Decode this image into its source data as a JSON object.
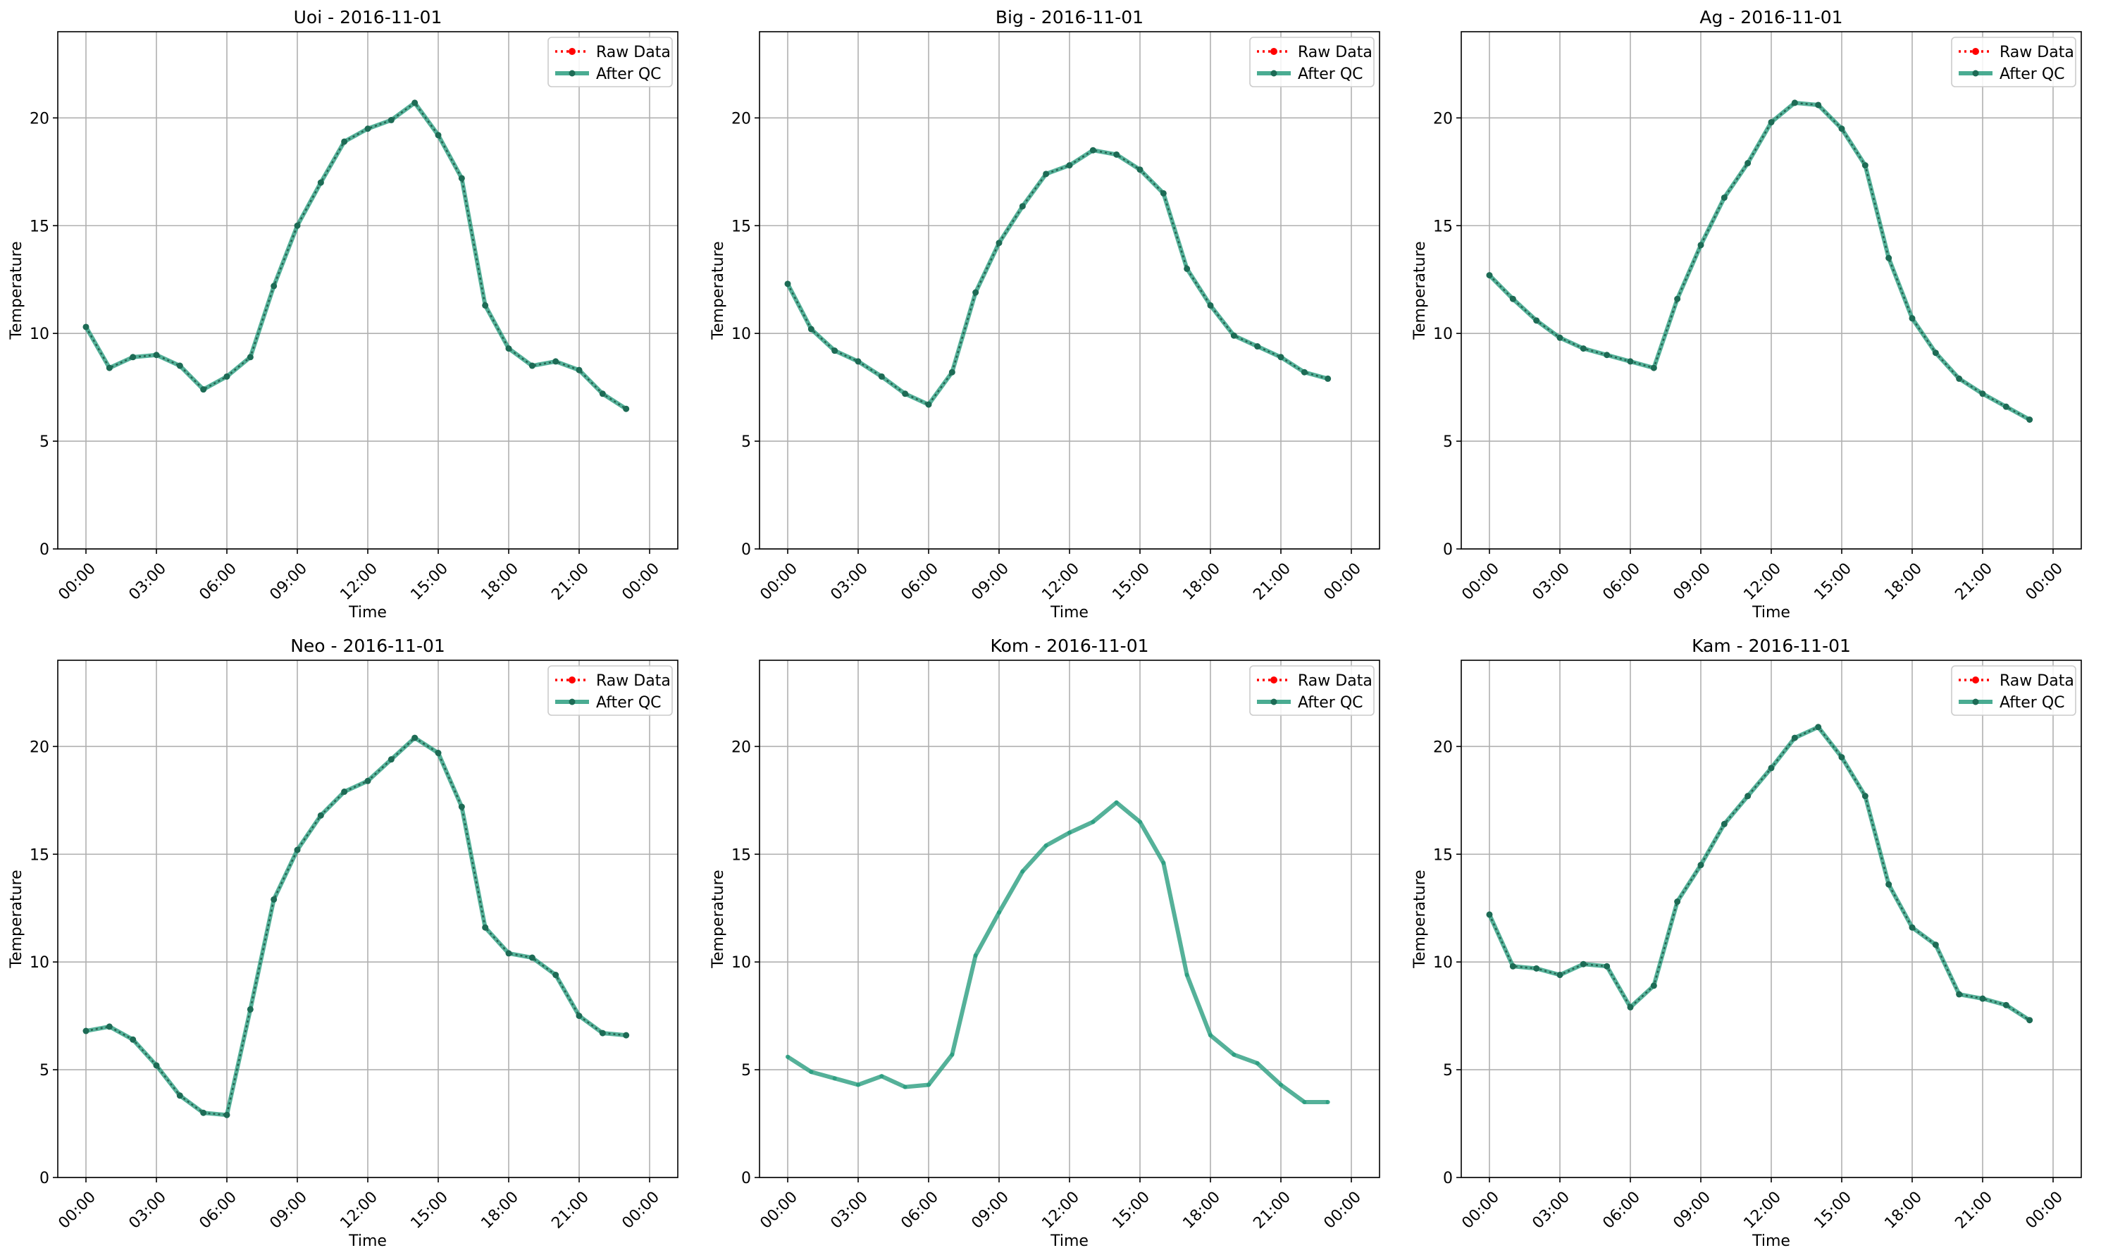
{
  "colors": {
    "raw": "#ff0000",
    "qc": "#2a9d7f",
    "qc_marker": "#1d6b55",
    "grid": "#b0b0b0",
    "axis": "#000000"
  },
  "legend_labels": {
    "raw": "Raw Data",
    "qc": "After QC"
  },
  "chart_data": [
    {
      "type": "line",
      "title": "Uoi - 2016-11-01",
      "xlabel": "Time",
      "ylabel": "Temperature",
      "x_ticks": [
        "00:00",
        "03:00",
        "06:00",
        "09:00",
        "12:00",
        "15:00",
        "18:00",
        "21:00",
        "00:00"
      ],
      "y_ticks": [
        0,
        5,
        10,
        15,
        20
      ],
      "ylim": [
        0,
        24
      ],
      "grid": true,
      "legend_placement": "top-right",
      "hours": [
        0,
        1,
        2,
        3,
        4,
        5,
        6,
        7,
        8,
        9,
        10,
        11,
        12,
        13,
        14,
        15,
        16,
        17,
        18,
        19,
        20,
        21,
        22,
        23
      ],
      "series": [
        {
          "name": "Raw Data",
          "values": [
            10.3,
            8.4,
            8.9,
            9.0,
            8.5,
            7.4,
            8.0,
            8.9,
            12.2,
            15.0,
            17.0,
            18.9,
            19.5,
            19.9,
            20.7,
            19.2,
            17.2,
            11.3,
            9.3,
            8.5,
            8.7,
            8.3,
            7.2,
            6.5
          ]
        },
        {
          "name": "After QC",
          "values": [
            10.3,
            8.4,
            8.9,
            9.0,
            8.5,
            7.4,
            8.0,
            8.9,
            12.2,
            15.0,
            17.0,
            18.9,
            19.5,
            19.9,
            20.7,
            19.2,
            17.2,
            11.3,
            9.3,
            8.5,
            8.7,
            8.3,
            7.2,
            6.5
          ]
        }
      ]
    },
    {
      "type": "line",
      "title": "Big - 2016-11-01",
      "xlabel": "Time",
      "ylabel": "Temperature",
      "x_ticks": [
        "00:00",
        "03:00",
        "06:00",
        "09:00",
        "12:00",
        "15:00",
        "18:00",
        "21:00",
        "00:00"
      ],
      "y_ticks": [
        0,
        5,
        10,
        15,
        20
      ],
      "ylim": [
        0,
        24
      ],
      "grid": true,
      "legend_placement": "top-right",
      "hours": [
        0,
        1,
        2,
        3,
        4,
        5,
        6,
        7,
        8,
        9,
        10,
        11,
        12,
        13,
        14,
        15,
        16,
        17,
        18,
        19,
        20,
        21,
        22,
        23
      ],
      "series": [
        {
          "name": "Raw Data",
          "values": [
            12.3,
            10.2,
            9.2,
            8.7,
            8.0,
            7.2,
            6.7,
            8.2,
            11.9,
            14.2,
            15.9,
            17.4,
            17.8,
            18.5,
            18.3,
            17.6,
            16.5,
            13.0,
            11.3,
            9.9,
            9.4,
            8.9,
            8.2,
            7.9
          ]
        },
        {
          "name": "After QC",
          "values": [
            12.3,
            10.2,
            9.2,
            8.7,
            8.0,
            7.2,
            6.7,
            8.2,
            11.9,
            14.2,
            15.9,
            17.4,
            17.8,
            18.5,
            18.3,
            17.6,
            16.5,
            13.0,
            11.3,
            9.9,
            9.4,
            8.9,
            8.2,
            7.9
          ]
        }
      ]
    },
    {
      "type": "line",
      "title": "Ag - 2016-11-01",
      "xlabel": "Time",
      "ylabel": "Temperature",
      "x_ticks": [
        "00:00",
        "03:00",
        "06:00",
        "09:00",
        "12:00",
        "15:00",
        "18:00",
        "21:00",
        "00:00"
      ],
      "y_ticks": [
        0,
        5,
        10,
        15,
        20
      ],
      "ylim": [
        0,
        24
      ],
      "grid": true,
      "legend_placement": "top-right",
      "hours": [
        0,
        1,
        2,
        3,
        4,
        5,
        6,
        7,
        8,
        9,
        10,
        11,
        12,
        13,
        14,
        15,
        16,
        17,
        18,
        19,
        20,
        21,
        22,
        23
      ],
      "series": [
        {
          "name": "Raw Data",
          "values": [
            12.7,
            11.6,
            10.6,
            9.8,
            9.3,
            9.0,
            8.7,
            8.4,
            11.6,
            14.1,
            16.3,
            17.9,
            19.8,
            20.7,
            20.6,
            19.5,
            17.8,
            13.5,
            10.7,
            9.1,
            7.9,
            7.2,
            6.6,
            6.0
          ]
        },
        {
          "name": "After QC",
          "values": [
            12.7,
            11.6,
            10.6,
            9.8,
            9.3,
            9.0,
            8.7,
            8.4,
            11.6,
            14.1,
            16.3,
            17.9,
            19.8,
            20.7,
            20.6,
            19.5,
            17.8,
            13.5,
            10.7,
            9.1,
            7.9,
            7.2,
            6.6,
            6.0
          ]
        }
      ]
    },
    {
      "type": "line",
      "title": "Neo - 2016-11-01",
      "xlabel": "Time",
      "ylabel": "Temperature",
      "x_ticks": [
        "00:00",
        "03:00",
        "06:00",
        "09:00",
        "12:00",
        "15:00",
        "18:00",
        "21:00",
        "00:00"
      ],
      "y_ticks": [
        0,
        5,
        10,
        15,
        20
      ],
      "ylim": [
        0,
        24
      ],
      "grid": true,
      "legend_placement": "top-right",
      "hours": [
        0,
        1,
        2,
        3,
        4,
        5,
        6,
        7,
        8,
        9,
        10,
        11,
        12,
        13,
        14,
        15,
        16,
        17,
        18,
        19,
        20,
        21,
        22,
        23
      ],
      "series": [
        {
          "name": "Raw Data",
          "values": [
            6.8,
            7.0,
            6.4,
            5.2,
            3.8,
            3.0,
            2.9,
            7.8,
            12.9,
            15.2,
            16.8,
            17.9,
            18.4,
            19.4,
            20.4,
            19.7,
            17.2,
            11.6,
            10.4,
            10.2,
            9.4,
            7.5,
            6.7,
            6.6
          ]
        },
        {
          "name": "After QC",
          "values": [
            6.8,
            7.0,
            6.4,
            5.2,
            3.8,
            3.0,
            2.9,
            7.8,
            12.9,
            15.2,
            16.8,
            17.9,
            18.4,
            19.4,
            20.4,
            19.7,
            17.2,
            11.6,
            10.4,
            10.2,
            9.4,
            7.5,
            6.7,
            6.6
          ]
        }
      ]
    },
    {
      "type": "line",
      "title": "Kom - 2016-11-01",
      "xlabel": "Time",
      "ylabel": "Temperature",
      "x_ticks": [
        "00:00",
        "03:00",
        "06:00",
        "09:00",
        "12:00",
        "15:00",
        "18:00",
        "21:00",
        "00:00"
      ],
      "y_ticks": [
        0,
        5,
        10,
        15,
        20
      ],
      "ylim": [
        0,
        24
      ],
      "grid": true,
      "legend_placement": "top-right",
      "hours": [
        0,
        1,
        2,
        3,
        4,
        5,
        6,
        7,
        8,
        9,
        10,
        11,
        12,
        13,
        14,
        15,
        16,
        17,
        18,
        19,
        20,
        21,
        22,
        23
      ],
      "series": [
        {
          "name": "Raw Data",
          "values": []
        },
        {
          "name": "After QC",
          "values": [
            5.6,
            4.9,
            4.6,
            4.3,
            4.7,
            4.2,
            4.3,
            5.7,
            10.3,
            12.3,
            14.2,
            15.4,
            16.0,
            16.5,
            17.4,
            16.5,
            14.6,
            9.4,
            6.6,
            5.7,
            5.3,
            4.3,
            3.5,
            3.5
          ]
        }
      ]
    },
    {
      "type": "line",
      "title": "Kam - 2016-11-01",
      "xlabel": "Time",
      "ylabel": "Temperature",
      "x_ticks": [
        "00:00",
        "03:00",
        "06:00",
        "09:00",
        "12:00",
        "15:00",
        "18:00",
        "21:00",
        "00:00"
      ],
      "y_ticks": [
        0,
        5,
        10,
        15,
        20
      ],
      "ylim": [
        0,
        24
      ],
      "grid": true,
      "legend_placement": "top-right",
      "hours": [
        0,
        1,
        2,
        3,
        4,
        5,
        6,
        7,
        8,
        9,
        10,
        11,
        12,
        13,
        14,
        15,
        16,
        17,
        18,
        19,
        20,
        21,
        22,
        23
      ],
      "series": [
        {
          "name": "Raw Data",
          "values": [
            12.2,
            9.8,
            9.7,
            9.4,
            9.9,
            9.8,
            7.9,
            8.9,
            12.8,
            14.5,
            16.4,
            17.7,
            19.0,
            20.4,
            20.9,
            19.5,
            17.7,
            13.6,
            11.6,
            10.8,
            8.5,
            8.3,
            8.0,
            7.3
          ]
        },
        {
          "name": "After QC",
          "values": [
            12.2,
            9.8,
            9.7,
            9.4,
            9.9,
            9.8,
            7.9,
            8.9,
            12.8,
            14.5,
            16.4,
            17.7,
            19.0,
            20.4,
            20.9,
            19.5,
            17.7,
            13.6,
            11.6,
            10.8,
            8.5,
            8.3,
            8.0,
            7.3
          ]
        }
      ]
    }
  ]
}
